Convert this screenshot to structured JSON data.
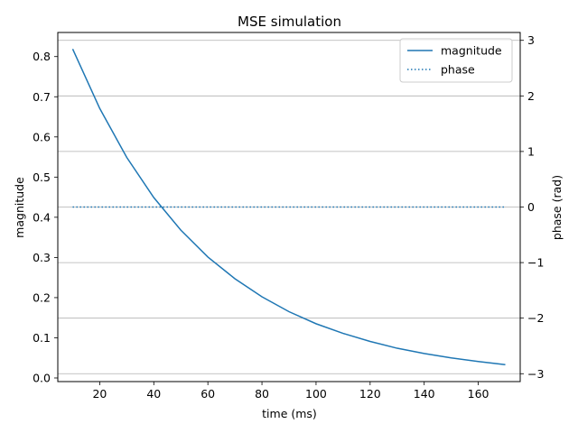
{
  "chart_data": {
    "type": "line",
    "title": "MSE simulation",
    "xlabel": "time (ms)",
    "ylabel": "magnitude",
    "y2label": "phase (rad)",
    "xlim": [
      4.5,
      175.5
    ],
    "ylim": [
      -0.009,
      0.86
    ],
    "y2lim": [
      -3.14159,
      3.14159
    ],
    "xticks": [
      20,
      40,
      60,
      80,
      100,
      120,
      140,
      160
    ],
    "yticks": [
      0.0,
      0.1,
      0.2,
      0.3,
      0.4,
      0.5,
      0.6,
      0.7,
      0.8
    ],
    "ytick_labels": [
      "0.0",
      "0.1",
      "0.2",
      "0.3",
      "0.4",
      "0.5",
      "0.6",
      "0.7",
      "0.8"
    ],
    "y2ticks": [
      -3,
      -2,
      -1,
      0,
      1,
      2,
      3
    ],
    "y2tick_labels": [
      "−3",
      "−2",
      "−1",
      "0",
      "1",
      "2",
      "3"
    ],
    "grid": "horizontal lines at right-axis ticks",
    "legend_position": "upper right",
    "color": "#1f77b4",
    "series": [
      {
        "name": "magnitude",
        "axis": "left",
        "style": "solid",
        "x": [
          10,
          20,
          30,
          40,
          50,
          60,
          70,
          80,
          90,
          100,
          110,
          120,
          130,
          140,
          150,
          160,
          170
        ],
        "y": [
          0.819,
          0.671,
          0.549,
          0.449,
          0.368,
          0.301,
          0.247,
          0.202,
          0.165,
          0.135,
          0.111,
          0.091,
          0.074,
          0.061,
          0.05,
          0.041,
          0.033
        ]
      },
      {
        "name": "phase",
        "axis": "right",
        "style": "dotted",
        "x": [
          10,
          20,
          30,
          40,
          50,
          60,
          70,
          80,
          90,
          100,
          110,
          120,
          130,
          140,
          150,
          160,
          170
        ],
        "y": [
          0,
          0,
          0,
          0,
          0,
          0,
          0,
          0,
          0,
          0,
          0,
          0,
          0,
          0,
          0,
          0,
          0
        ]
      }
    ]
  }
}
